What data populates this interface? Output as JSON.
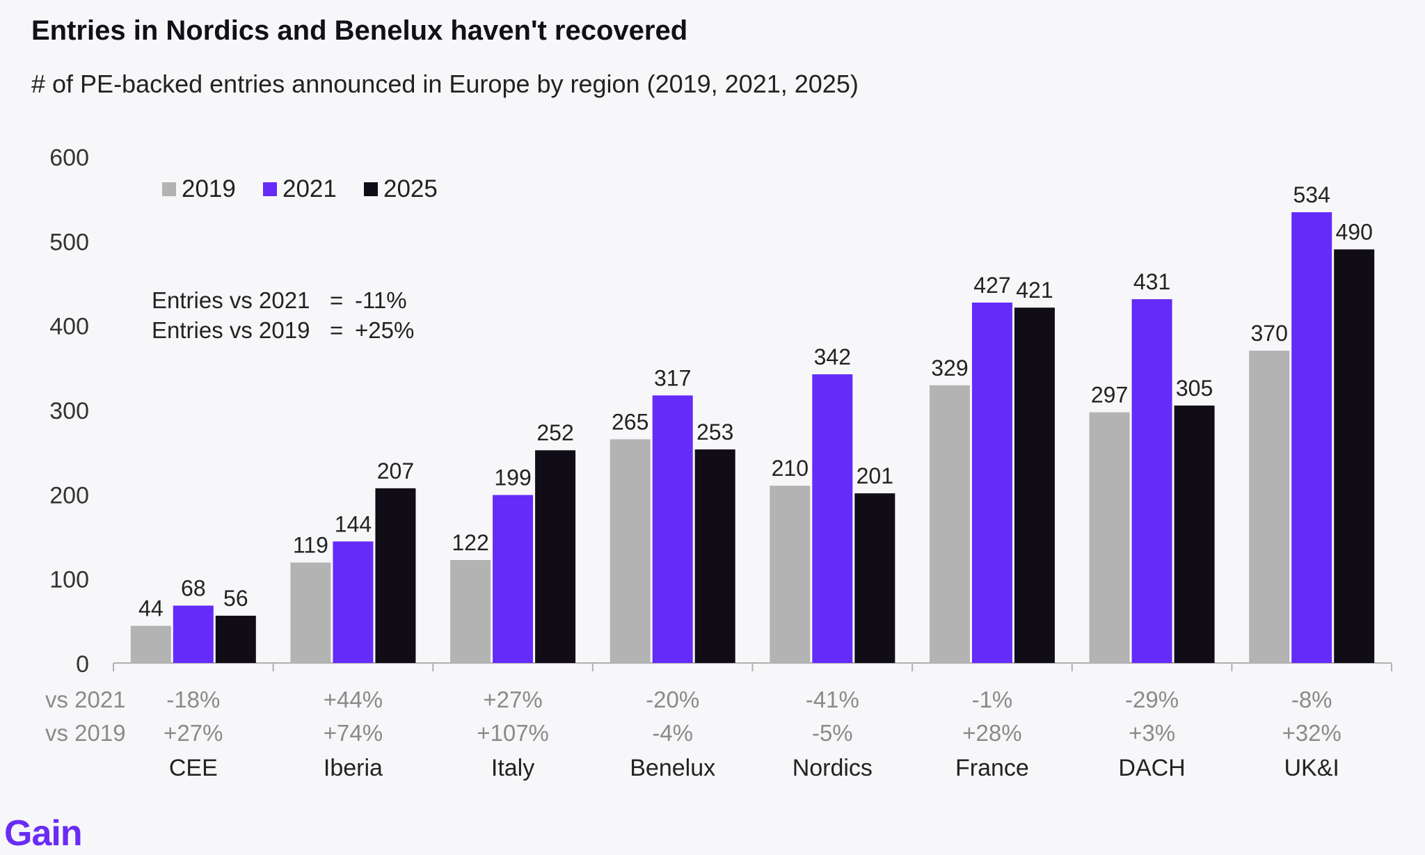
{
  "title": "Entries in Nordics and Benelux haven't recovered",
  "subtitle": "# of PE-backed entries announced in Europe by region (2019, 2021, 2025)",
  "brand": "Gain",
  "colors": {
    "2019": "#b3b3b3",
    "2021": "#652bf8",
    "2025": "#110d16"
  },
  "chart_data": {
    "type": "bar",
    "categories": [
      "CEE",
      "Iberia",
      "Italy",
      "Benelux",
      "Nordics",
      "France",
      "DACH",
      "UK&I"
    ],
    "series": [
      {
        "name": "2019",
        "values": [
          44,
          119,
          122,
          265,
          210,
          329,
          297,
          370
        ]
      },
      {
        "name": "2021",
        "values": [
          68,
          144,
          199,
          317,
          342,
          427,
          431,
          534
        ]
      },
      {
        "name": "2025",
        "values": [
          56,
          207,
          252,
          253,
          201,
          421,
          305,
          490
        ]
      }
    ],
    "ylim": [
      0,
      600
    ],
    "yticks": [
      0,
      100,
      200,
      300,
      400,
      500,
      600
    ],
    "legend_position": "top-left",
    "annotations": [
      {
        "label": "Entries vs 2021",
        "eq": "=",
        "value": "-11%"
      },
      {
        "label": "Entries vs 2019",
        "eq": "=",
        "value": "+25%"
      }
    ],
    "change_rows": [
      {
        "label": "vs 2021",
        "values": [
          "-18%",
          "+44%",
          "+27%",
          "-20%",
          "-41%",
          "-1%",
          "-29%",
          "-8%"
        ]
      },
      {
        "label": "vs 2019",
        "values": [
          "+27%",
          "+74%",
          "+107%",
          "-4%",
          "-5%",
          "+28%",
          "+3%",
          "+32%"
        ]
      }
    ]
  }
}
